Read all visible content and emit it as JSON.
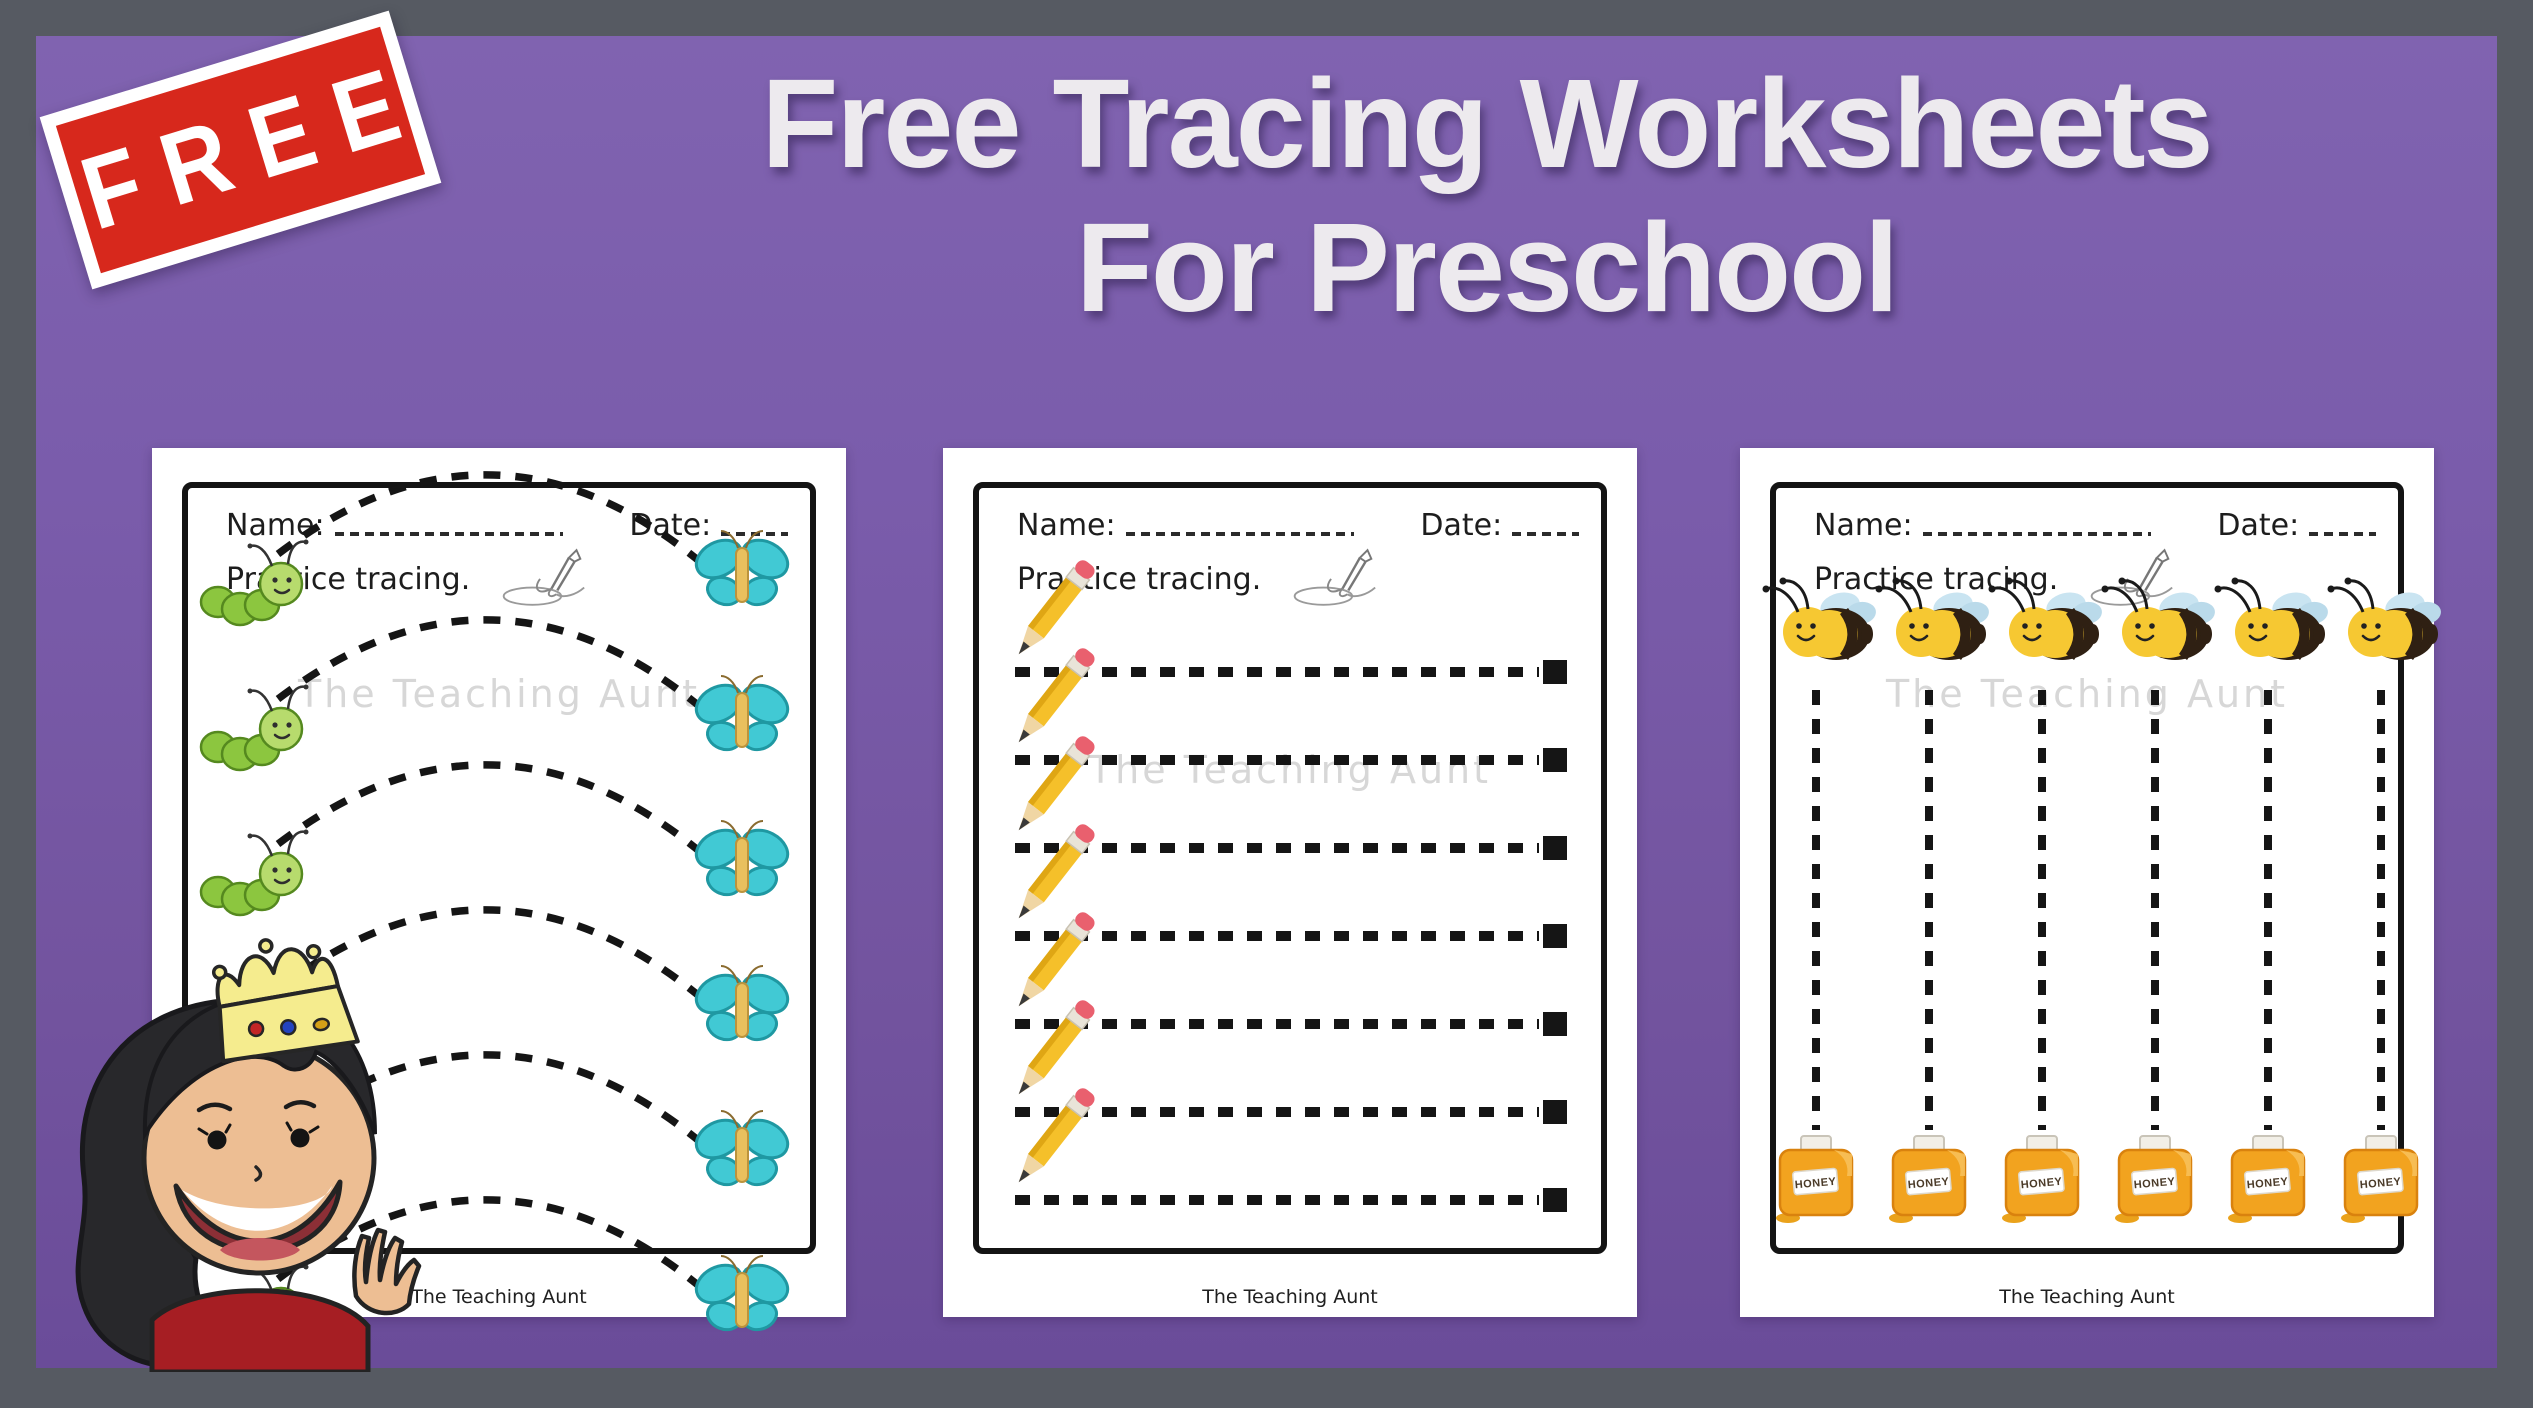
{
  "badge": {
    "label": "FREE"
  },
  "title": {
    "line1": "Free Tracing Worksheets",
    "line2": "For Preschool"
  },
  "worksheets": [
    {
      "name_label": "Name:",
      "date_label": "Date:",
      "instruction": "Practice tracing.",
      "watermark": "The Teaching Aunt",
      "footer": "The Teaching Aunt",
      "type": "arcs",
      "rows": 6
    },
    {
      "name_label": "Name:",
      "date_label": "Date:",
      "instruction": "Practice tracing.",
      "watermark": "The Teaching Aunt",
      "footer": "The Teaching Aunt",
      "type": "hlines",
      "rows": 7
    },
    {
      "name_label": "Name:",
      "date_label": "Date:",
      "instruction": "Practice tracing.",
      "watermark": "The Teaching Aunt",
      "footer": "The Teaching Aunt",
      "type": "vlines",
      "columns": 6,
      "jar_label": "HONEY"
    }
  ],
  "colors": {
    "frame_gray": "#565a62",
    "background_top": "#8063b0",
    "background_bottom": "#6a4c99",
    "badge_red": "#d7281c",
    "title_text": "#edeaee",
    "trace_black": "#151515",
    "butterfly_cyan": "#41c9d4",
    "butterfly_outline": "#1f98a2",
    "caterpillar_green": "#8cc63f",
    "caterpillar_head": "#b7db6d",
    "bee_yellow": "#f6c832",
    "bee_dark": "#2f2013",
    "wing_blue": "#c9e4f1",
    "honey_orange": "#f2a31f",
    "pencil_yellow": "#f5c02a",
    "eraser_pink": "#e9606e",
    "shirt_red": "#a61e23",
    "skin": "#edbe93",
    "hair_black": "#28282b",
    "crown_yellow": "#f5ec8e"
  }
}
